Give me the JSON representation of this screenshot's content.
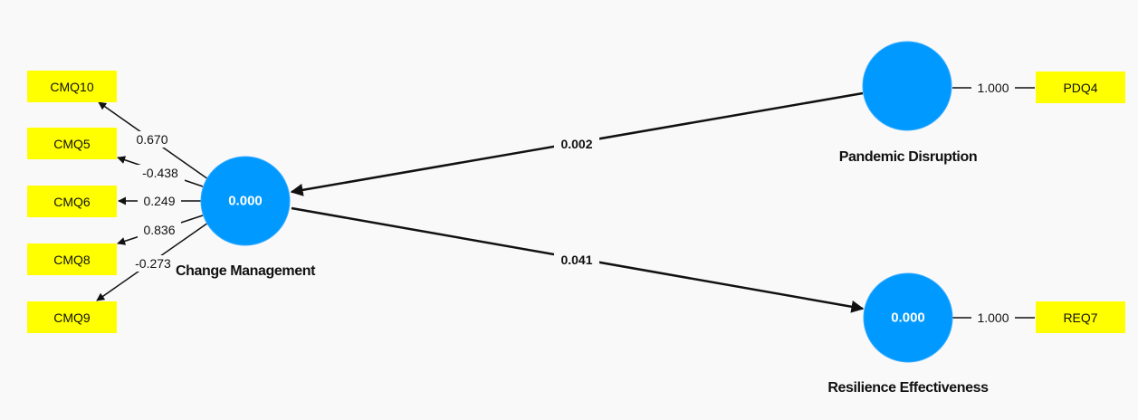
{
  "colors": {
    "latent_fill": "#0099ff",
    "latent_stroke": "#33aaff",
    "indicator_fill": "#ffff00",
    "line": "#111111",
    "background": "#f9f9f9"
  },
  "latents": [
    {
      "id": "cm",
      "name": "Change Management",
      "value": "0.000"
    },
    {
      "id": "pd",
      "name": "Pandemic Disruption",
      "value": ""
    },
    {
      "id": "re",
      "name": "Resilience Effectiveness",
      "value": "0.000"
    }
  ],
  "indicators": [
    {
      "id": "CMQ10",
      "label": "CMQ10",
      "latent": "cm",
      "loading": "0.670"
    },
    {
      "id": "CMQ5",
      "label": "CMQ5",
      "latent": "cm",
      "loading": "-0.438"
    },
    {
      "id": "CMQ6",
      "label": "CMQ6",
      "latent": "cm",
      "loading": "0.249"
    },
    {
      "id": "CMQ8",
      "label": "CMQ8",
      "latent": "cm",
      "loading": "0.836"
    },
    {
      "id": "CMQ9",
      "label": "CMQ9",
      "latent": "cm",
      "loading": "-0.273"
    },
    {
      "id": "PDQ4",
      "label": "PDQ4",
      "latent": "pd",
      "loading": "1.000"
    },
    {
      "id": "REQ7",
      "label": "REQ7",
      "latent": "re",
      "loading": "1.000"
    }
  ],
  "paths": [
    {
      "from": "pd",
      "to": "cm",
      "coefficient": "0.002"
    },
    {
      "from": "cm",
      "to": "re",
      "coefficient": "0.041"
    }
  ]
}
